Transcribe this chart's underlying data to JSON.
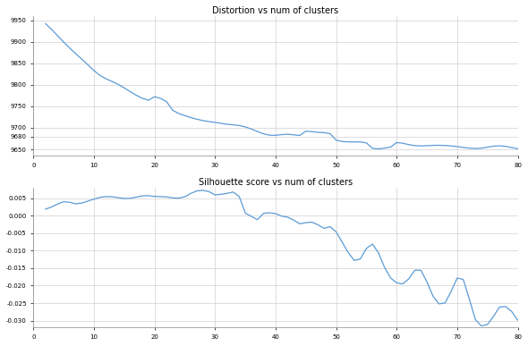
{
  "title_distortion": "Distortion vs num of clusters",
  "title_silhouette": "Silhouette score vs num of clusters",
  "line_color": "#5b9bd5",
  "background_color": "#ffffff",
  "grid_color": "#d0d0d0",
  "x_min": 1,
  "x_max": 80,
  "distortion_ylim": [
    9635,
    9960
  ],
  "distortion_yticks": [
    9650,
    9680,
    9700,
    9750,
    9800,
    9850,
    9900,
    9950
  ],
  "silhouette_ylim": [
    -0.032,
    0.008
  ],
  "silhouette_yticks": [
    -0.03,
    -0.025,
    -0.02,
    -0.015,
    -0.01,
    -0.005,
    0.0,
    0.005
  ],
  "x_ticks": [
    0,
    10,
    20,
    30,
    40,
    50,
    60,
    70,
    80
  ],
  "title_fontsize": 7,
  "tick_fontsize": 5,
  "line_width": 0.9,
  "figsize": [
    5.9,
    3.87
  ],
  "dpi": 100
}
